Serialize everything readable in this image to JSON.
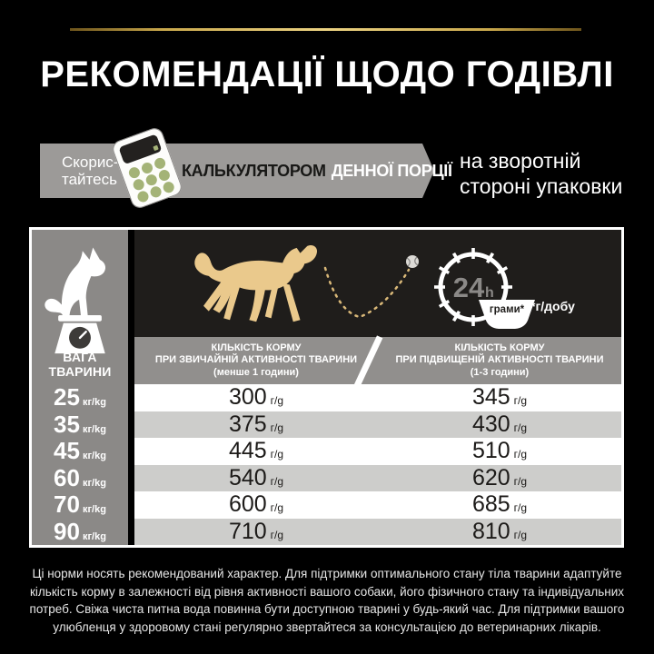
{
  "page": {
    "background": "#000000",
    "gold_accent": "#c9a84c"
  },
  "title": "РЕКОМЕНДАЦІЇ ЩОДО ГОДІВЛІ",
  "banner": {
    "use_line1": "Скорис-",
    "use_line2": "тайтесь",
    "label_dark": "КАЛЬКУЛЯТОРОМ",
    "label_light": "ДЕННОЇ ПОРЦІЇ",
    "note_line1": "на зворотній",
    "note_line2": "стороні упаковки"
  },
  "table": {
    "weight_label": "ВАГА ТВАРИНИ",
    "weight_unit": "кг/kg",
    "amount_unit": "г/g",
    "clock": {
      "hours": "24",
      "hours_unit": "h",
      "bowl_label": "грами*",
      "unit_note": "*г/добу"
    },
    "col_normal": {
      "line1": "КІЛЬКІСТЬ КОРМУ",
      "line2": "ПРИ ЗВИЧАЙНІЙ АКТИВНОСТІ ТВАРИНИ",
      "line3": "(менше 1 години)"
    },
    "col_high": {
      "line1": "КІЛЬКІСТЬ КОРМУ",
      "line2": "ПРИ ПІДВИЩЕНІЙ АКТИВНОСТІ ТВАРИНИ",
      "line3": "(1-3 години)"
    },
    "rows": [
      {
        "weight": "25",
        "normal": "300",
        "high": "345"
      },
      {
        "weight": "35",
        "normal": "375",
        "high": "430"
      },
      {
        "weight": "45",
        "normal": "445",
        "high": "510"
      },
      {
        "weight": "60",
        "normal": "540",
        "high": "620"
      },
      {
        "weight": "70",
        "normal": "600",
        "high": "685"
      },
      {
        "weight": "90",
        "normal": "710",
        "high": "810"
      }
    ]
  },
  "footer": "Ці норми носять рекомендований характер. Для підтримки оптимального стану тіла тварини адаптуйте кількість корму в залежності від рівня активності вашого собаки, його фізичного стану та індивідуальних потреб. Свіжа чиста питна вода повинна бути доступною тварині у будь-який час. Для підтримки вашого улюбленця у здоровому стані регулярно звертайтеся за консультацією до ветеринарних лікарів.",
  "chart_data": {
    "type": "table",
    "title": "РЕКОМЕНДАЦІЇ ЩОДО ГОДІВЛІ",
    "unit_note": "*г/добу (грами на добу)",
    "columns": [
      "ВАГА ТВАРИНИ (кг/kg)",
      "КІЛЬКІСТЬ КОРМУ ПРИ ЗВИЧАЙНІЙ АКТИВНОСТІ ТВАРИНИ (менше 1 години), г/g",
      "КІЛЬКІСТЬ КОРМУ ПРИ ПІДВИЩЕНІЙ АКТИВНОСТІ ТВАРИНИ (1-3 години), г/g"
    ],
    "rows": [
      [
        25,
        300,
        345
      ],
      [
        35,
        375,
        430
      ],
      [
        45,
        445,
        510
      ],
      [
        60,
        540,
        620
      ],
      [
        70,
        600,
        685
      ],
      [
        90,
        710,
        810
      ]
    ]
  }
}
